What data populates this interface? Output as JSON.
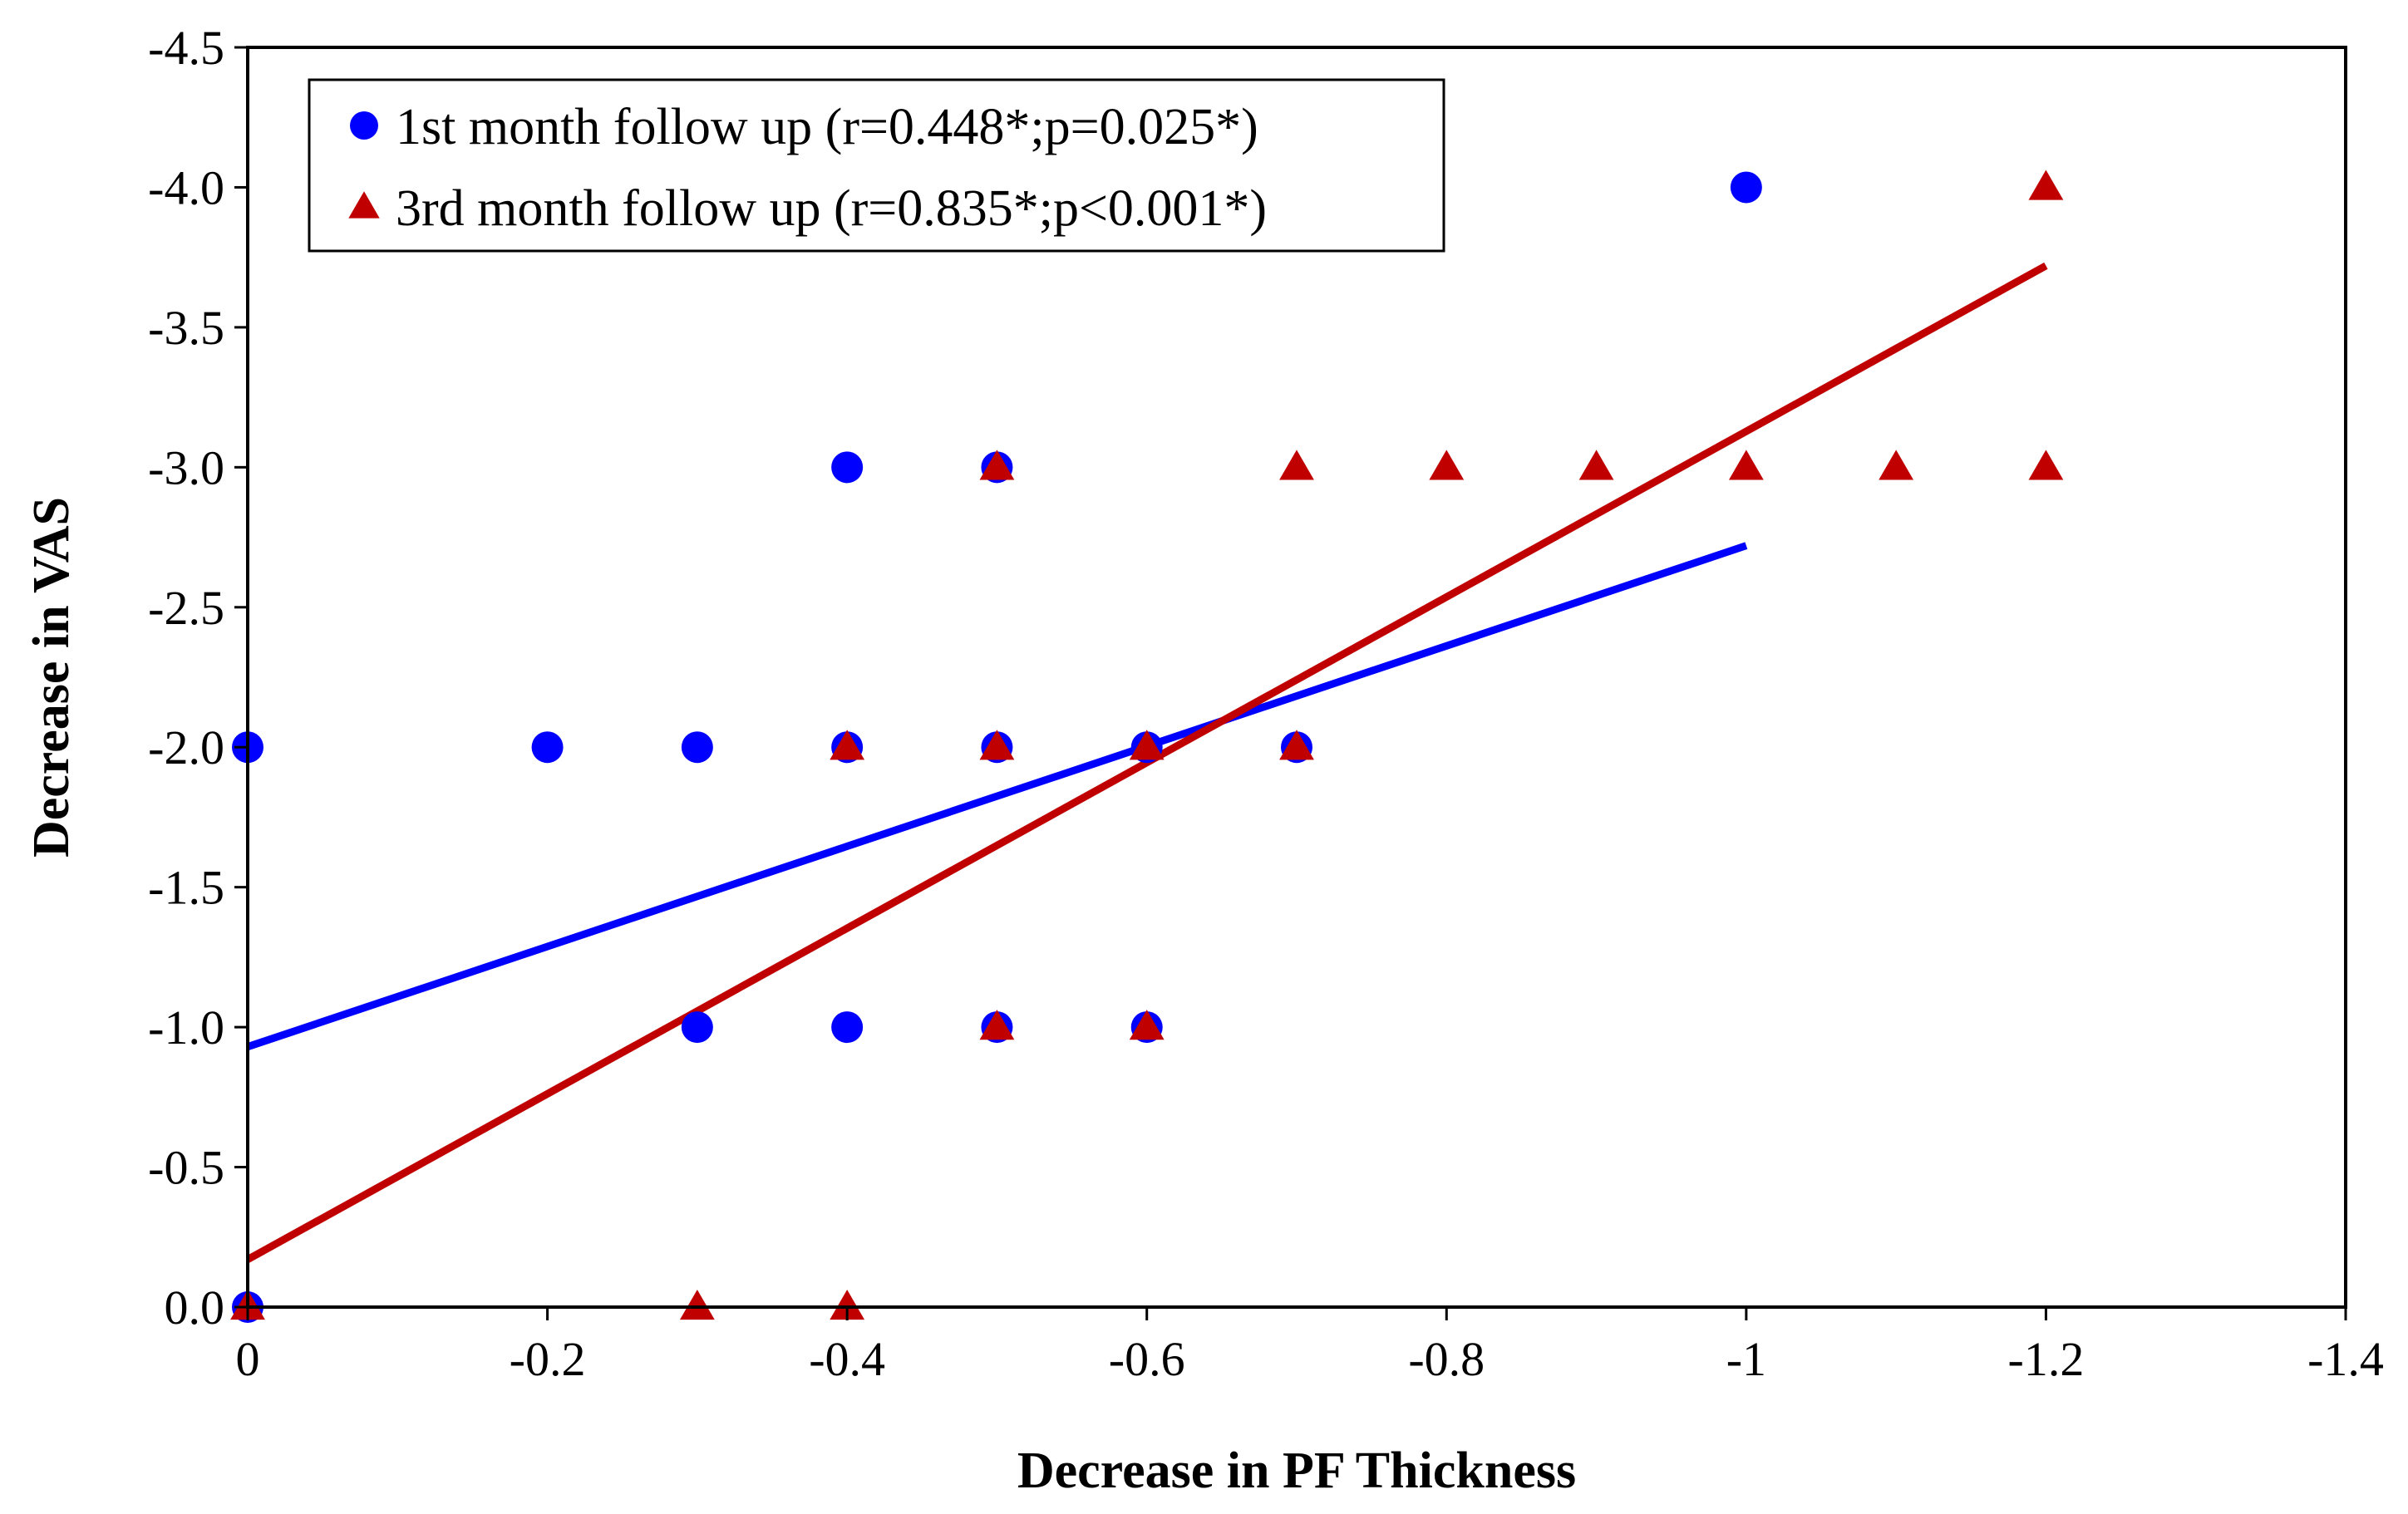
{
  "chart_data": {
    "type": "scatter",
    "title": "",
    "xlabel": "Decrease in PF Thickness",
    "ylabel": "Decrease in VAS",
    "xlim": [
      0,
      -1.4
    ],
    "ylim": [
      0,
      -4.5
    ],
    "x_ticks": [
      "0",
      "-0.2",
      "-0.4",
      "-0.6",
      "-0.8",
      "-1",
      "-1.2",
      "-1.4"
    ],
    "x_tick_values": [
      0,
      -0.2,
      -0.4,
      -0.6,
      -0.8,
      -1,
      -1.2,
      -1.4
    ],
    "y_ticks": [
      "0.0",
      "-0.5",
      "-1.0",
      "-1.5",
      "-2.0",
      "-2.5",
      "-3.0",
      "-3.5",
      "-4.0",
      "-4.5"
    ],
    "y_tick_values": [
      0,
      -0.5,
      -1,
      -1.5,
      -2,
      -2.5,
      -3,
      -3.5,
      -4,
      -4.5
    ],
    "grid": false,
    "legend_position": "top-left",
    "series": [
      {
        "name": "1st month follow up (r=0.448*;p=0.025*)",
        "marker": "circle",
        "color": "#0000ff",
        "points": [
          [
            0,
            -2
          ],
          [
            0,
            0
          ],
          [
            -0.2,
            -2
          ],
          [
            -0.3,
            -2
          ],
          [
            -0.3,
            -1
          ],
          [
            -0.4,
            -3
          ],
          [
            -0.4,
            -2
          ],
          [
            -0.4,
            -1
          ],
          [
            -0.5,
            -3
          ],
          [
            -0.5,
            -2
          ],
          [
            -0.5,
            -1
          ],
          [
            -0.6,
            -2
          ],
          [
            -0.6,
            -1
          ],
          [
            -0.7,
            -2
          ],
          [
            -1.0,
            -4
          ]
        ],
        "trendline": [
          [
            0,
            -0.93
          ],
          [
            -1.0,
            -2.72
          ]
        ]
      },
      {
        "name": "3rd month follow up (r=0.835*;p<0.001*)",
        "marker": "triangle",
        "color": "#c00000",
        "points": [
          [
            0,
            0
          ],
          [
            -0.3,
            0
          ],
          [
            -0.4,
            0
          ],
          [
            -0.4,
            -2
          ],
          [
            -0.5,
            -3
          ],
          [
            -0.5,
            -2
          ],
          [
            -0.5,
            -1
          ],
          [
            -0.6,
            -2
          ],
          [
            -0.6,
            -1
          ],
          [
            -0.7,
            -3
          ],
          [
            -0.7,
            -2
          ],
          [
            -0.8,
            -3
          ],
          [
            -0.9,
            -3
          ],
          [
            -1.0,
            -3
          ],
          [
            -1.1,
            -3
          ],
          [
            -1.2,
            -4
          ],
          [
            -1.2,
            -3
          ]
        ],
        "trendline": [
          [
            0,
            -0.17
          ],
          [
            -1.2,
            -3.72
          ]
        ]
      }
    ]
  }
}
